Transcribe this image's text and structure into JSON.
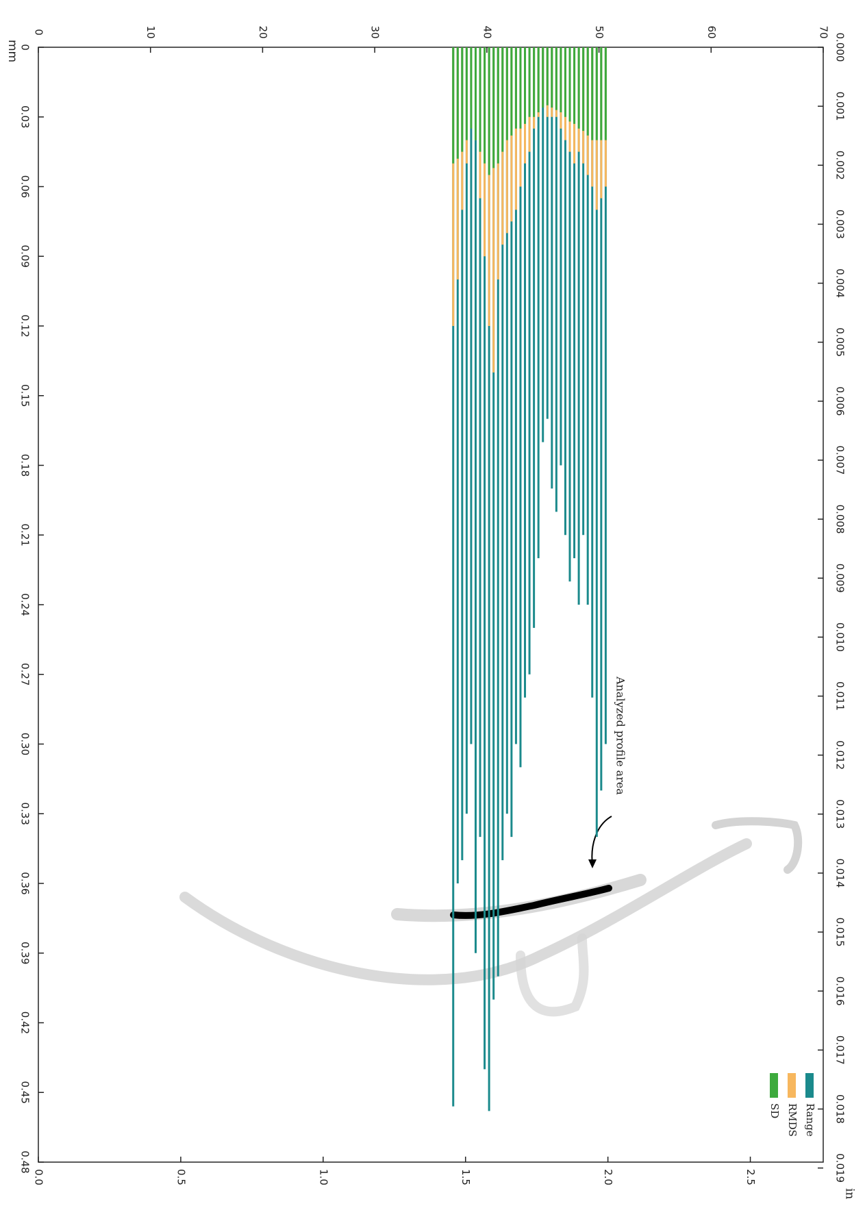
{
  "chart_data": {
    "type": "bar",
    "rotated": true,
    "xlabel": "mm",
    "x2label": "in",
    "annotation": "Analyzed profile area",
    "x": [
      37.0,
      37.4,
      37.8,
      38.2,
      38.6,
      39.0,
      39.4,
      39.8,
      40.2,
      40.6,
      41.0,
      41.4,
      41.8,
      42.2,
      42.6,
      43.0,
      43.4,
      43.8,
      44.2,
      44.6,
      45.0,
      45.4,
      45.8,
      46.2,
      46.6,
      47.0,
      47.4,
      47.8,
      48.2,
      48.6,
      49.0,
      49.4,
      49.8,
      50.2,
      50.6
    ],
    "series": [
      {
        "name": "Range",
        "color": "#1b8a8c",
        "values": [
          0.456,
          0.36,
          0.35,
          0.33,
          0.3,
          0.39,
          0.34,
          0.44,
          0.458,
          0.41,
          0.4,
          0.35,
          0.33,
          0.34,
          0.3,
          0.31,
          0.28,
          0.27,
          0.25,
          0.22,
          0.17,
          0.16,
          0.19,
          0.2,
          0.18,
          0.21,
          0.23,
          0.22,
          0.24,
          0.21,
          0.24,
          0.28,
          0.34,
          0.32,
          0.3
        ]
      },
      {
        "name": "RMDS",
        "color": "#f7b75e",
        "values": [
          0.12,
          0.1,
          0.07,
          0.05,
          0.025,
          0.04,
          0.065,
          0.09,
          0.12,
          0.14,
          0.1,
          0.085,
          0.08,
          0.075,
          0.07,
          0.06,
          0.05,
          0.045,
          0.035,
          0.03,
          0.025,
          0.03,
          0.03,
          0.03,
          0.035,
          0.04,
          0.045,
          0.05,
          0.045,
          0.05,
          0.055,
          0.06,
          0.07,
          0.065,
          0.06
        ]
      },
      {
        "name": "SD",
        "color": "#3daa3d",
        "values": [
          0.05,
          0.048,
          0.045,
          0.04,
          0.035,
          0.04,
          0.045,
          0.05,
          0.055,
          0.052,
          0.05,
          0.045,
          0.04,
          0.038,
          0.035,
          0.035,
          0.033,
          0.03,
          0.03,
          0.028,
          0.026,
          0.025,
          0.026,
          0.027,
          0.028,
          0.03,
          0.032,
          0.033,
          0.035,
          0.036,
          0.038,
          0.04,
          0.04,
          0.04,
          0.04
        ]
      }
    ],
    "xlim": [
      0,
      70
    ],
    "xticks": [
      0,
      10,
      20,
      30,
      40,
      50,
      60,
      70
    ],
    "x2lim": [
      0,
      2.756
    ],
    "x2ticks": [
      {
        "value": 0,
        "label": "0.0"
      },
      0.5,
      {
        "value": 1,
        "label": "1.0"
      },
      1.5,
      {
        "value": 2,
        "label": "2.0"
      },
      2.5
    ],
    "ylim": [
      0,
      0.48
    ],
    "yticks": [
      0,
      0.03,
      0.06,
      0.09,
      0.12,
      0.15,
      0.18,
      0.21,
      0.24,
      0.27,
      {
        "value": 0.3,
        "label": "0.30"
      },
      0.33,
      0.36,
      0.39,
      0.42,
      0.45,
      0.48
    ],
    "y2lim": [
      0,
      0.0189
    ],
    "y2ticks": [
      {
        "value": 0,
        "label": "0.000"
      },
      0.001,
      0.002,
      0.003,
      0.004,
      0.005,
      0.006,
      0.007,
      0.008,
      0.009,
      {
        "value": 0.01,
        "label": "0.010"
      },
      0.011,
      0.012,
      0.013,
      0.014,
      0.015,
      0.016,
      0.017,
      0.018,
      0.019
    ],
    "legend": "lower right"
  }
}
